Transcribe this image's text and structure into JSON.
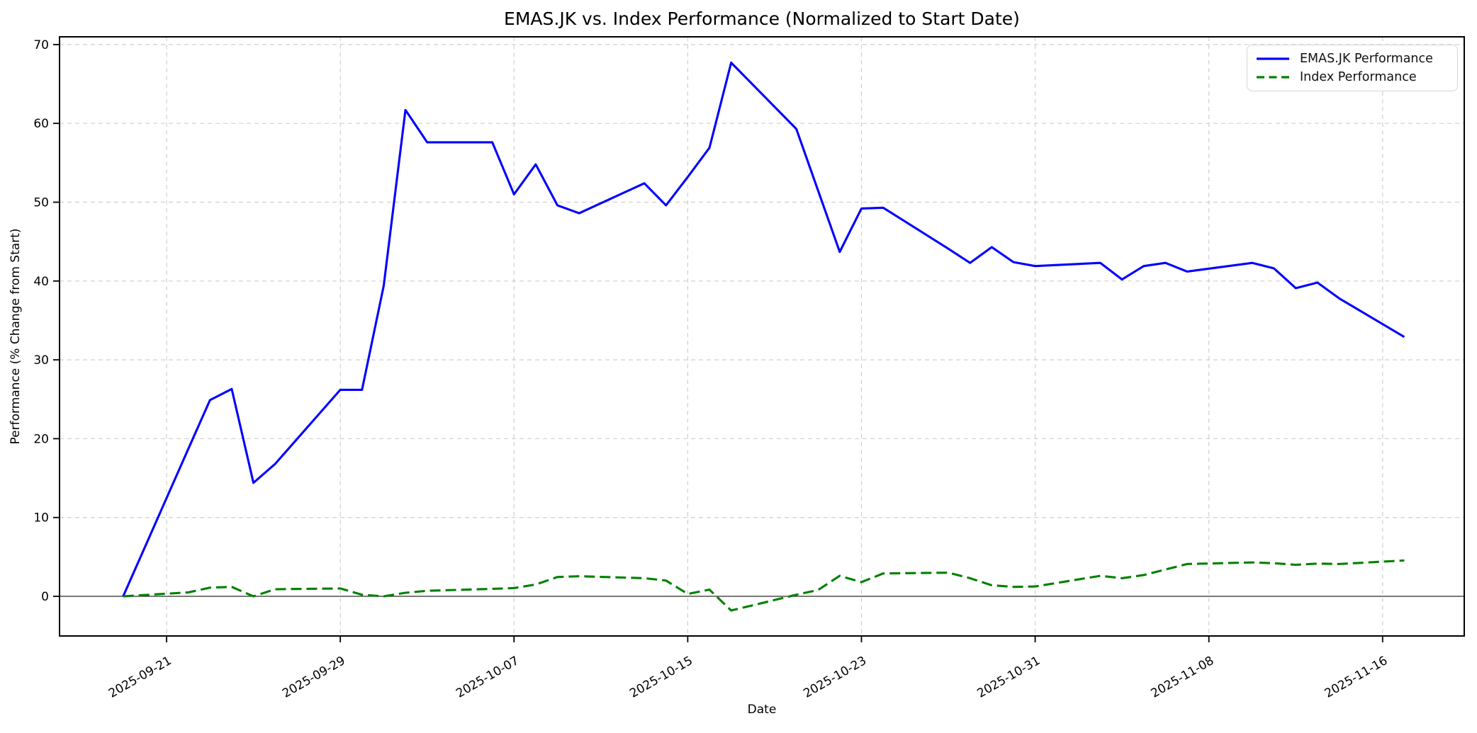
{
  "figure": {
    "title": "EMAS.JK vs. Index Performance (Normalized to Start Date)",
    "xlabel": "Date",
    "ylabel": "Performance (% Change from Start)"
  },
  "legend": {
    "position": "upper right",
    "items": [
      {
        "label": "EMAS.JK Performance",
        "color": "#0000ff",
        "style": "solid"
      },
      {
        "label": "Index Performance",
        "color": "#008000",
        "style": "dashed"
      }
    ]
  },
  "chart_data": {
    "type": "line",
    "title": "EMAS.JK vs. Index Performance (Normalized to Start Date)",
    "xlabel": "Date",
    "ylabel": "Performance (% Change from Start)",
    "grid": true,
    "grid_color": "#d0d0d0",
    "spine_color": "#000000",
    "zero_line_color": "#2b2b2b",
    "legend_position": "upper right",
    "y_ticks": [
      0,
      10,
      20,
      30,
      40,
      50,
      60,
      70
    ],
    "ylim": [
      -5.03,
      70.98
    ],
    "x_start_date": "2025-09-19",
    "xlim_days": [
      -2.93,
      61.76
    ],
    "x_tick_labels": [
      "2025-09-21",
      "2025-09-29",
      "2025-10-07",
      "2025-10-15",
      "2025-10-23",
      "2025-10-31",
      "2025-11-08",
      "2025-11-16"
    ],
    "dates": [
      "2025-09-19",
      "2025-09-22",
      "2025-09-23",
      "2025-09-24",
      "2025-09-25",
      "2025-09-26",
      "2025-09-29",
      "2025-09-30",
      "2025-10-01",
      "2025-10-02",
      "2025-10-03",
      "2025-10-06",
      "2025-10-07",
      "2025-10-08",
      "2025-10-09",
      "2025-10-10",
      "2025-10-13",
      "2025-10-14",
      "2025-10-15",
      "2025-10-16",
      "2025-10-17",
      "2025-10-20",
      "2025-10-21",
      "2025-10-22",
      "2025-10-23",
      "2025-10-24",
      "2025-10-27",
      "2025-10-28",
      "2025-10-29",
      "2025-10-30",
      "2025-10-31",
      "2025-11-03",
      "2025-11-04",
      "2025-11-05",
      "2025-11-06",
      "2025-11-07",
      "2025-11-10",
      "2025-11-11",
      "2025-11-12",
      "2025-11-13",
      "2025-11-14",
      "2025-11-17"
    ],
    "series": [
      {
        "name": "EMAS.JK Performance",
        "color": "#0000ff",
        "dash": false,
        "values": [
          0.0,
          18.7,
          24.9,
          26.3,
          14.4,
          16.8,
          26.2,
          26.2,
          39.4,
          61.7,
          57.6,
          57.6,
          51.0,
          54.8,
          49.6,
          48.6,
          52.4,
          49.6,
          53.2,
          56.9,
          67.7,
          59.3,
          51.5,
          43.7,
          49.2,
          49.3,
          44.1,
          42.3,
          44.3,
          42.4,
          41.9,
          42.3,
          40.2,
          41.9,
          42.3,
          41.2,
          42.3,
          41.6,
          39.1,
          39.8,
          37.8,
          32.9
        ]
      },
      {
        "name": "Index Performance",
        "color": "#008000",
        "dash": true,
        "values": [
          0.0,
          0.5,
          1.1,
          1.2,
          0.0,
          0.9,
          1.0,
          0.2,
          0.0,
          0.45,
          0.7,
          0.95,
          1.05,
          1.5,
          2.45,
          2.55,
          2.3,
          2.0,
          0.3,
          0.85,
          -1.8,
          0.2,
          0.8,
          2.6,
          1.8,
          2.9,
          3.0,
          2.3,
          1.4,
          1.2,
          1.25,
          2.6,
          2.3,
          2.7,
          3.4,
          4.1,
          4.3,
          4.2,
          4.0,
          4.15,
          4.1,
          4.55
        ]
      }
    ]
  }
}
